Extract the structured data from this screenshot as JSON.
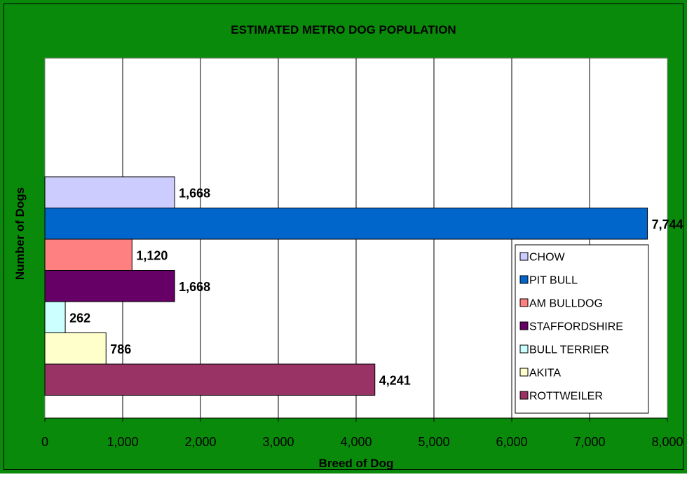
{
  "colors": {
    "frame_background": "#0a8a0a",
    "plot_background": "#ffffff",
    "gridline": "#000000",
    "text": "#000000"
  },
  "chart_data": {
    "type": "bar",
    "orientation": "horizontal",
    "title": "ESTIMATED METRO DOG POPULATION",
    "xlabel": "Breed of Dog",
    "ylabel": "Number of Dogs",
    "xlim": [
      0,
      8000
    ],
    "xticks": [
      0,
      1000,
      2000,
      3000,
      4000,
      5000,
      6000,
      7000,
      8000
    ],
    "xtick_labels": [
      "0",
      "1,000",
      "2,000",
      "3,000",
      "4,000",
      "5,000",
      "6,000",
      "7,000",
      "8,000"
    ],
    "grid": true,
    "legend_position": "lower-right inside plot",
    "series": [
      {
        "name": "CHOW",
        "value": 1668,
        "label": "1,668",
        "color": "#ccccff"
      },
      {
        "name": "PIT BULL",
        "value": 7744,
        "label": "7,744",
        "color": "#0066cc"
      },
      {
        "name": "AM BULLDOG",
        "value": 1120,
        "label": "1,120",
        "color": "#ff8080"
      },
      {
        "name": "STAFFORDSHIRE",
        "value": 1668,
        "label": "1,668",
        "color": "#660066"
      },
      {
        "name": "BULL TERRIER",
        "value": 262,
        "label": "262",
        "color": "#ccffff"
      },
      {
        "name": "AKITA",
        "value": 786,
        "label": "786",
        "color": "#ffffcc"
      },
      {
        "name": "ROTTWEILER",
        "value": 4241,
        "label": "4,241",
        "color": "#993366"
      }
    ]
  }
}
